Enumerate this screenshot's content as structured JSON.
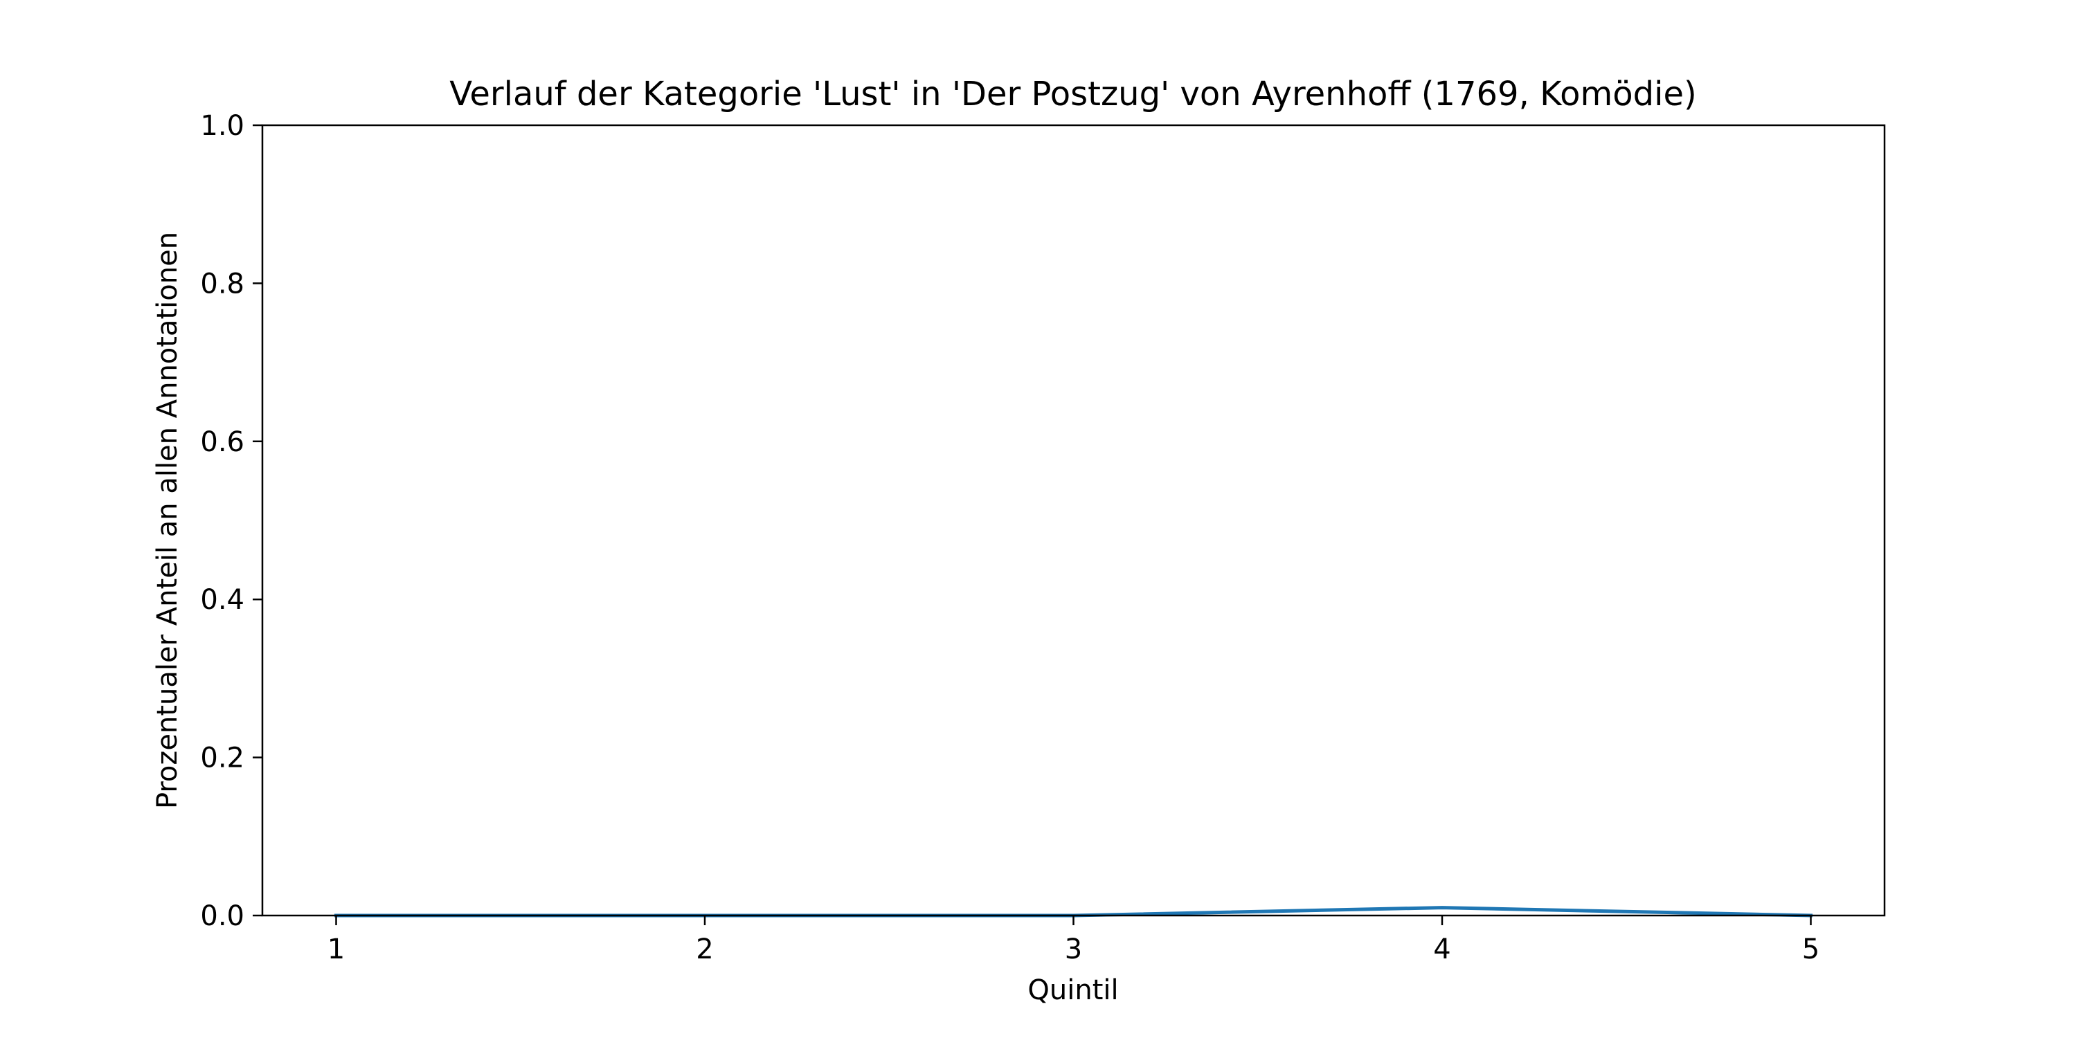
{
  "chart_data": {
    "type": "line",
    "title": "Verlauf der Kategorie 'Lust' in 'Der Postzug' von Ayrenhoff (1769, Komödie)",
    "xlabel": "Quintil",
    "ylabel": "Prozentualer Anteil an allen Annotationen",
    "x": [
      1,
      2,
      3,
      4,
      5
    ],
    "series": [
      {
        "values": [
          0.0,
          0.0,
          0.0,
          0.01,
          0.0
        ],
        "color": "#1f77b4"
      }
    ],
    "xticks": [
      "1",
      "2",
      "3",
      "4",
      "5"
    ],
    "yticks": [
      "0.0",
      "0.2",
      "0.4",
      "0.6",
      "0.8",
      "1.0"
    ],
    "ytick_values": [
      0.0,
      0.2,
      0.4,
      0.6,
      0.8,
      1.0
    ],
    "xlim": [
      0.8,
      5.2
    ],
    "ylim": [
      0.0,
      1.0
    ],
    "grid": false,
    "legend": false
  }
}
